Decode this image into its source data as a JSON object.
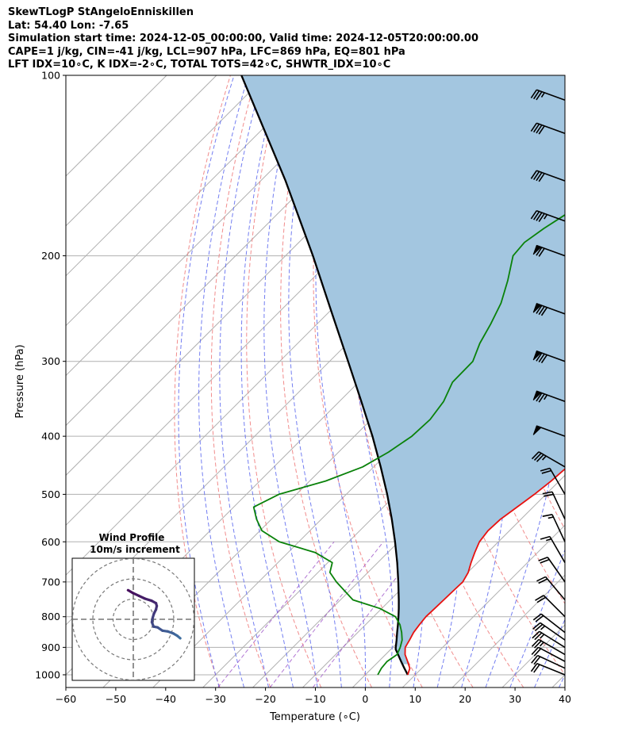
{
  "header": {
    "line1": "SkewTLogP StAngeloEnniskillen",
    "line2": "Lat: 54.40   Lon: -7.65",
    "line3": "Simulation start time: 2024-12-05_00:00:00, Valid time: 2024-12-05T20:00:00.00",
    "line4": "CAPE=1 j/kg, CIN=-41 j/kg, LCL=907 hPa, LFC=869 hPa, EQ=801 hPa",
    "line5": "LFT IDX=10∘C, K IDX=-2∘C, TOTAL TOTS=42∘C, SHWTR_IDX=10∘C"
  },
  "chart_data": {
    "type": "skewt",
    "xlabel": "Temperature (∘C)",
    "ylabel": "Pressure (hPa)",
    "xlim": [
      -60,
      40
    ],
    "ylim": [
      1050,
      100
    ],
    "x_ticks": [
      "−60",
      "−50",
      "−40",
      "−30",
      "−20",
      "−10",
      "0",
      "10",
      "20",
      "30",
      "40"
    ],
    "x_tick_values": [
      -60,
      -50,
      -40,
      -30,
      -20,
      -10,
      0,
      10,
      20,
      30,
      40
    ],
    "y_ticks": [
      "1000",
      "900",
      "800",
      "700",
      "600",
      "500",
      "400",
      "300",
      "200",
      "100"
    ],
    "y_tick_values": [
      1000,
      900,
      800,
      700,
      600,
      500,
      400,
      300,
      200,
      100
    ],
    "grid": true,
    "colors": {
      "temperature": "#e8110f",
      "dewpoint": "#0a820a",
      "parcel": "#000000",
      "cape_fill": "#a3c6e0",
      "dry_adiabat": "#f08080",
      "moist_adiabat": "#6470f0",
      "mixing_ratio": "#9c52c8",
      "isotherm": "#b0b0b0"
    },
    "temperature": {
      "p": [
        1000,
        975,
        950,
        925,
        900,
        875,
        850,
        825,
        800,
        775,
        750,
        725,
        700,
        675,
        650,
        625,
        600,
        575,
        550,
        525,
        500,
        475,
        450,
        425,
        400,
        375,
        350,
        325,
        300,
        280,
        265,
        250,
        235,
        220,
        205,
        190,
        175,
        160,
        150,
        140,
        130,
        120,
        110,
        100
      ],
      "t": [
        8.5,
        7.6,
        5.8,
        3.9,
        2.5,
        1.9,
        1.2,
        0.8,
        0.5,
        0.6,
        0.7,
        0.8,
        0.9,
        0.1,
        -1.3,
        -2.6,
        -3.8,
        -4.3,
        -4.1,
        -3.2,
        -2.3,
        -1.6,
        -1.2,
        -1.5,
        -1.9,
        -3.0,
        -4.5,
        -6.0,
        -8.0,
        -9.5,
        -9.2,
        -8.1,
        -6.7,
        -4.9,
        -2.9,
        -1.0,
        0.9,
        3.3,
        6.2,
        9.0,
        10.8,
        12.5,
        13.2,
        13.2
      ]
    },
    "dewpoint": {
      "p": [
        1000,
        975,
        950,
        925,
        900,
        875,
        850,
        825,
        800,
        775,
        750,
        700,
        675,
        650,
        625,
        600,
        575,
        550,
        525,
        500,
        475,
        450,
        425,
        400,
        375,
        350,
        325,
        300,
        280,
        260,
        240,
        220,
        200,
        190,
        180,
        160,
        140,
        120,
        100
      ],
      "t": [
        2.5,
        1.9,
        1.7,
        2.3,
        1.5,
        0.4,
        -1.2,
        -3.1,
        -5.6,
        -10.4,
        -17.5,
        -24.4,
        -27.6,
        -29.1,
        -34.6,
        -43.9,
        -49.6,
        -53.0,
        -56.0,
        -53.5,
        -46.8,
        -42.2,
        -40.0,
        -38.5,
        -38.2,
        -39.1,
        -41.2,
        -41.3,
        -43.5,
        -45.2,
        -47.3,
        -50.5,
        -54.4,
        -54.8,
        -53.7,
        -50.3,
        -46.4,
        -41.9,
        -36.7
      ]
    },
    "parcel": {
      "p": [
        1000,
        975,
        950,
        925,
        907,
        900,
        875,
        850,
        825,
        800,
        775,
        750,
        700,
        650,
        600,
        550,
        500,
        450,
        400,
        350,
        300,
        250,
        200,
        150,
        100
      ],
      "t": [
        8.5,
        6.5,
        4.5,
        2.5,
        1.0,
        0.6,
        -0.7,
        -2.1,
        -3.5,
        -5.0,
        -6.6,
        -8.3,
        -12.0,
        -16.1,
        -20.7,
        -25.9,
        -31.8,
        -38.6,
        -46.4,
        -55.6,
        -66.3,
        -79.0,
        -94.5,
        -115.0,
        -145.0
      ]
    },
    "wind_barbs": {
      "p": [
        1000,
        975,
        950,
        925,
        900,
        875,
        850,
        800,
        750,
        700,
        650,
        600,
        550,
        500,
        450,
        400,
        350,
        300,
        250,
        200,
        175,
        150,
        125,
        110
      ],
      "speed_kt": [
        20,
        20,
        20,
        25,
        25,
        25,
        20,
        20,
        20,
        20,
        15,
        15,
        20,
        20,
        35,
        50,
        75,
        80,
        80,
        70,
        45,
        40,
        40,
        35
      ],
      "direction_deg": [
        292,
        295,
        298,
        300,
        302,
        305,
        308,
        315,
        320,
        325,
        330,
        335,
        335,
        330,
        300,
        290,
        290,
        290,
        290,
        290,
        290,
        290,
        290,
        290
      ]
    },
    "hodograph": {
      "title": "Wind Profile",
      "subtitle": "10m/s increment",
      "u": [
        11.6,
        10.9,
        9.9,
        8.5,
        7.2,
        6.0,
        5.0,
        4.6,
        4.8,
        5.1,
        5.6,
        5.8,
        5.6,
        4.5,
        2.9,
        1.4,
        -0.1,
        -1.3
      ],
      "v": [
        -4.7,
        -4.1,
        -3.5,
        -3.0,
        -2.8,
        -2.0,
        -1.8,
        -0.7,
        0.4,
        1.4,
        2.4,
        3.3,
        4.0,
        4.6,
        5.1,
        5.8,
        6.5,
        7.2
      ],
      "rings": [
        5,
        10,
        15
      ]
    }
  }
}
